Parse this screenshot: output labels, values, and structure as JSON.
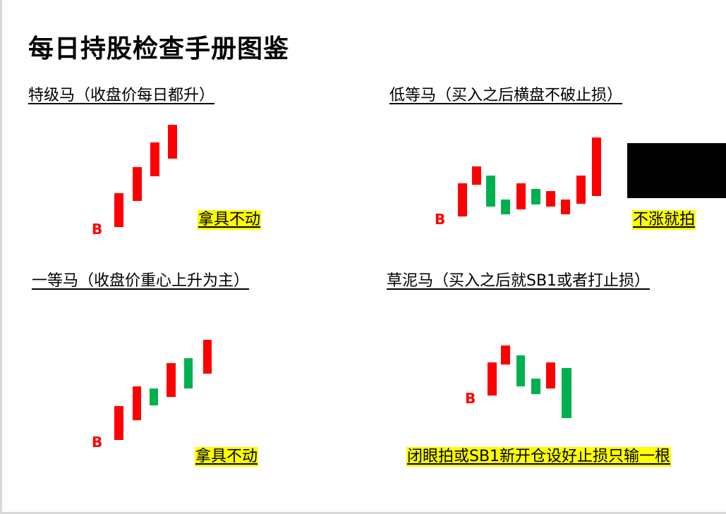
{
  "title": "每日持股检查手册图鉴",
  "panels": {
    "top_left": {
      "heading": "特级马（收盘价每日都升）",
      "marker": "B",
      "action": "拿具不动",
      "candles": [
        "up",
        "up",
        "up",
        "up"
      ]
    },
    "top_right": {
      "heading": "低等马（买入之后横盘不破止损）",
      "marker": "B",
      "action": "不涨就拍",
      "candles": [
        "up",
        "up",
        "down",
        "down",
        "up",
        "down",
        "up",
        "up",
        "up",
        "up"
      ]
    },
    "bottom_left": {
      "heading": "一等马（收盘价重心上升为主）",
      "marker": "B",
      "action": "拿具不动",
      "candles": [
        "up",
        "up",
        "down",
        "up",
        "down",
        "up"
      ]
    },
    "bottom_right": {
      "heading": "草泥马（买入之后就SB1或者打止损）",
      "marker": "B",
      "action": "闭眼拍或SB1新开仓设好止损只输一根",
      "candles": [
        "up",
        "up",
        "down",
        "down",
        "up",
        "down"
      ]
    }
  },
  "colors": {
    "up": "#ff0000",
    "down": "#00b050",
    "highlight": "#ffff00"
  }
}
